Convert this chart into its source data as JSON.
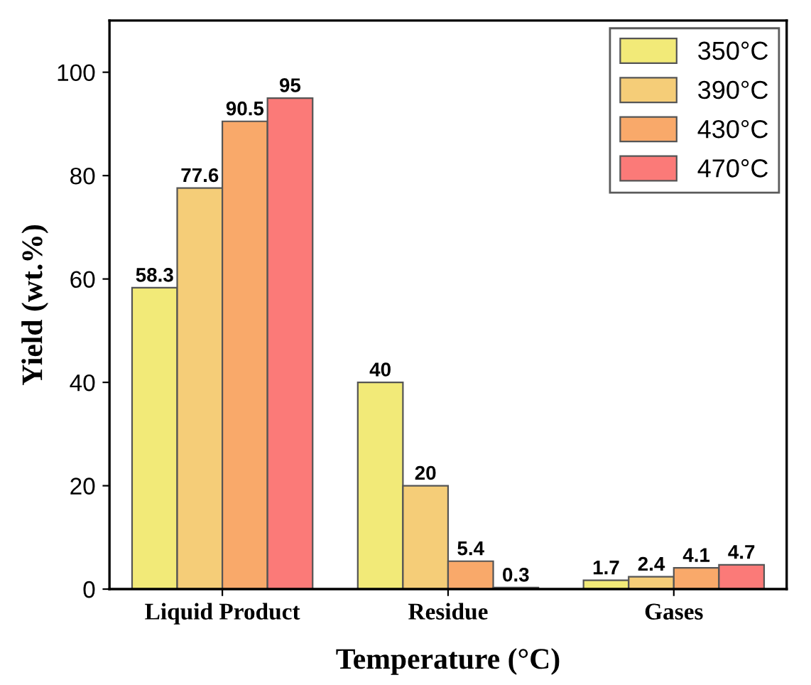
{
  "chart_data": {
    "type": "bar",
    "xlabel": "Temperature (°C)",
    "ylabel": "Yield (wt.%)",
    "categories": [
      "Liquid Product",
      "Residue",
      "Gases"
    ],
    "series": [
      {
        "name": "350°C",
        "color": "#f2ea78",
        "values": [
          58.3,
          40,
          1.7
        ]
      },
      {
        "name": "390°C",
        "color": "#f5cd78",
        "values": [
          77.6,
          20,
          2.4
        ]
      },
      {
        "name": "430°C",
        "color": "#f9a96a",
        "values": [
          90.5,
          5.4,
          4.1
        ]
      },
      {
        "name": "470°C",
        "color": "#fb7a78",
        "values": [
          95,
          0.3,
          4.7
        ]
      }
    ],
    "ylim": [
      0,
      110
    ],
    "yticks": [
      0,
      20,
      40,
      60,
      80,
      100
    ],
    "data_labels": true,
    "legend": "top right",
    "grid": false
  }
}
